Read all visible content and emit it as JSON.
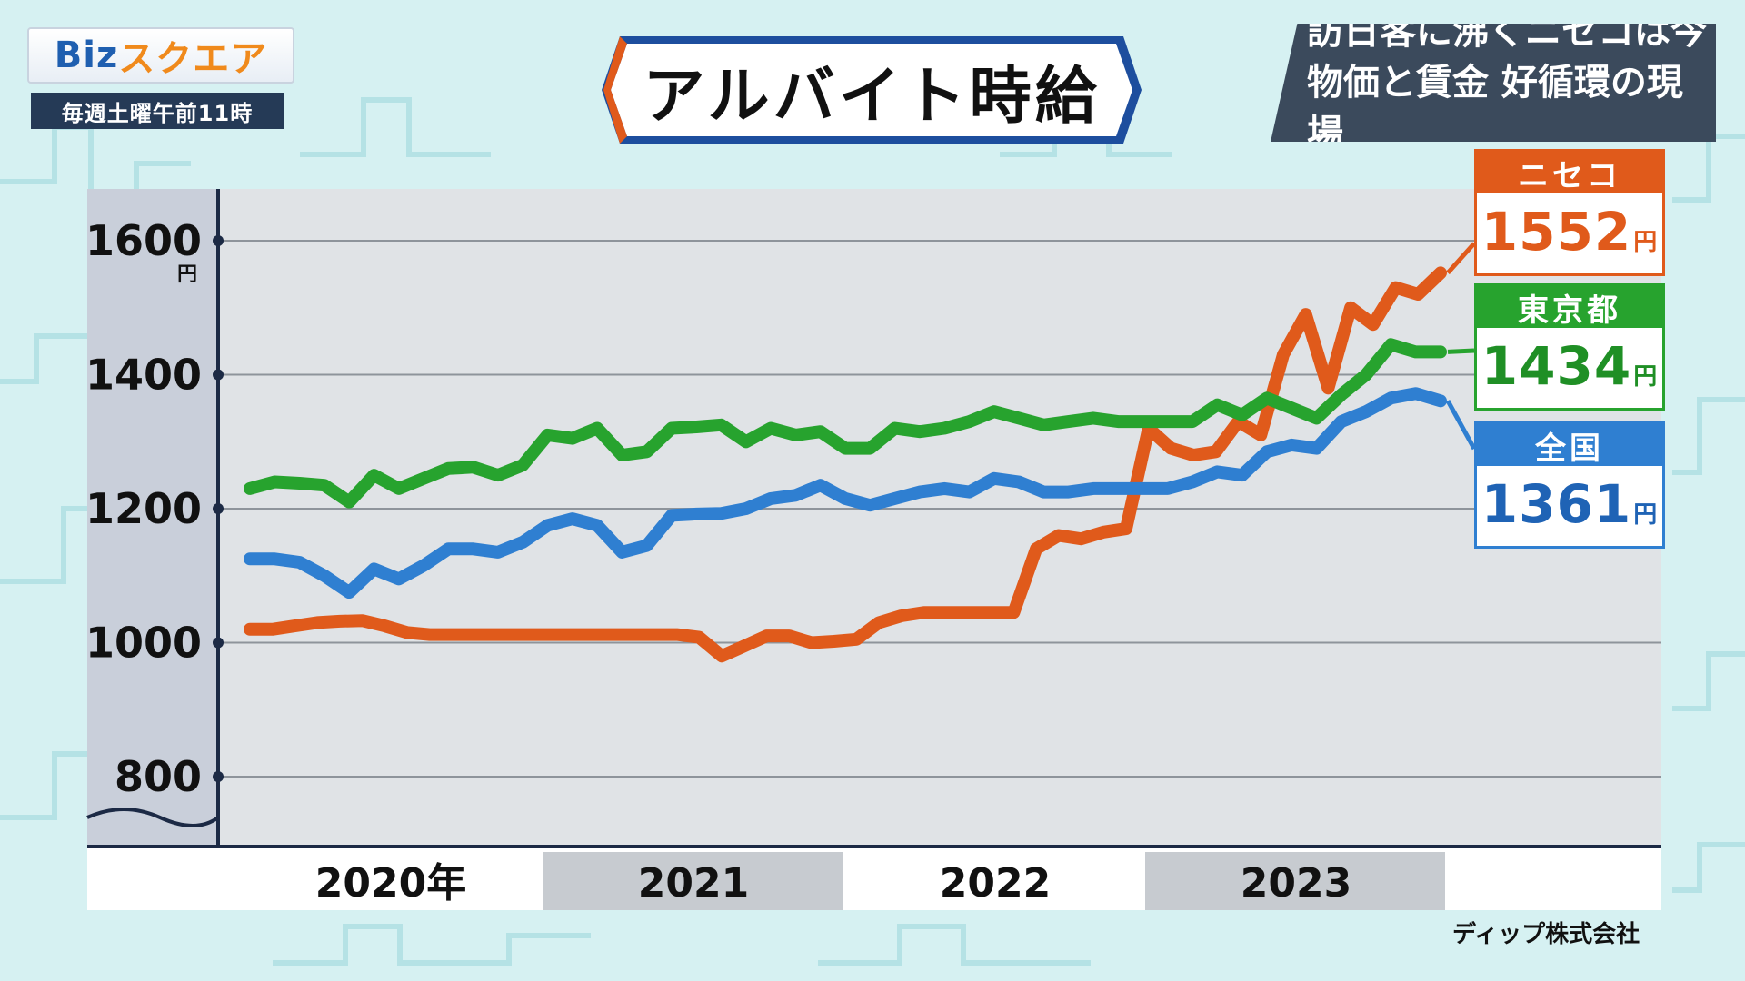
{
  "logo": {
    "text_biz": "Biz",
    "text_square": "スクエア"
  },
  "schedule": "毎週土曜午前11時",
  "title": "アルバイト時給",
  "headline": {
    "line1": "訪日客に沸くニセコは今",
    "line2": "物価と賃金 好循環の現場"
  },
  "source": "ディップ株式会社",
  "colors": {
    "niseko": "#e05a1b",
    "tokyo": "#27a32e",
    "national": "#2f7fd1",
    "plot_bg": "#e0e3e6",
    "axis_bg": "#c9cfda"
  },
  "chart_data": {
    "type": "line",
    "title": "アルバイト時給",
    "ylim": [
      800,
      1600
    ],
    "y_ticks": [
      "1600",
      "1400",
      "1200",
      "1000",
      "800"
    ],
    "y_unit": "円",
    "x_labels": [
      "2020年",
      "2021",
      "2022",
      "2023"
    ],
    "x_start": "2020-01",
    "series": [
      {
        "name": "ニセコ",
        "color": "#e05a1b",
        "values": [
          1020,
          1020,
          1025,
          1030,
          1032,
          1033,
          1025,
          1015,
          1012,
          1012,
          1012,
          1012,
          1012,
          1012,
          1012,
          1012,
          1012,
          1012,
          1012,
          1012,
          1008,
          980,
          995,
          1010,
          1010,
          1000,
          1002,
          1005,
          1030,
          1040,
          1045,
          1045,
          1045,
          1045,
          1045,
          1140,
          1160,
          1155,
          1165,
          1170,
          1320,
          1290,
          1280,
          1285,
          1330,
          1310,
          1430,
          1490,
          1380,
          1500,
          1475,
          1530,
          1520,
          1552
        ],
        "label_value": "1552",
        "label_unit": "円"
      },
      {
        "name": "東京都",
        "color": "#27a32e",
        "values": [
          1230,
          1240,
          1238,
          1235,
          1210,
          1250,
          1230,
          1245,
          1260,
          1262,
          1250,
          1265,
          1310,
          1305,
          1320,
          1280,
          1285,
          1320,
          1322,
          1325,
          1300,
          1320,
          1310,
          1315,
          1290,
          1290,
          1320,
          1315,
          1320,
          1330,
          1345,
          1335,
          1325,
          1330,
          1335,
          1330,
          1330,
          1330,
          1330,
          1355,
          1340,
          1365,
          1350,
          1335,
          1370,
          1400,
          1445,
          1434,
          1434
        ],
        "label_value": "1434",
        "label_unit": "円"
      },
      {
        "name": "全国",
        "color": "#2f7fd1",
        "values": [
          1125,
          1125,
          1120,
          1100,
          1075,
          1110,
          1095,
          1115,
          1140,
          1140,
          1135,
          1150,
          1175,
          1185,
          1175,
          1135,
          1145,
          1190,
          1192,
          1193,
          1200,
          1215,
          1220,
          1235,
          1215,
          1205,
          1215,
          1225,
          1230,
          1225,
          1245,
          1240,
          1225,
          1225,
          1230,
          1230,
          1230,
          1230,
          1240,
          1255,
          1250,
          1285,
          1295,
          1290,
          1330,
          1345,
          1365,
          1372,
          1361
        ],
        "label_value": "1361",
        "label_unit": "円"
      }
    ]
  }
}
